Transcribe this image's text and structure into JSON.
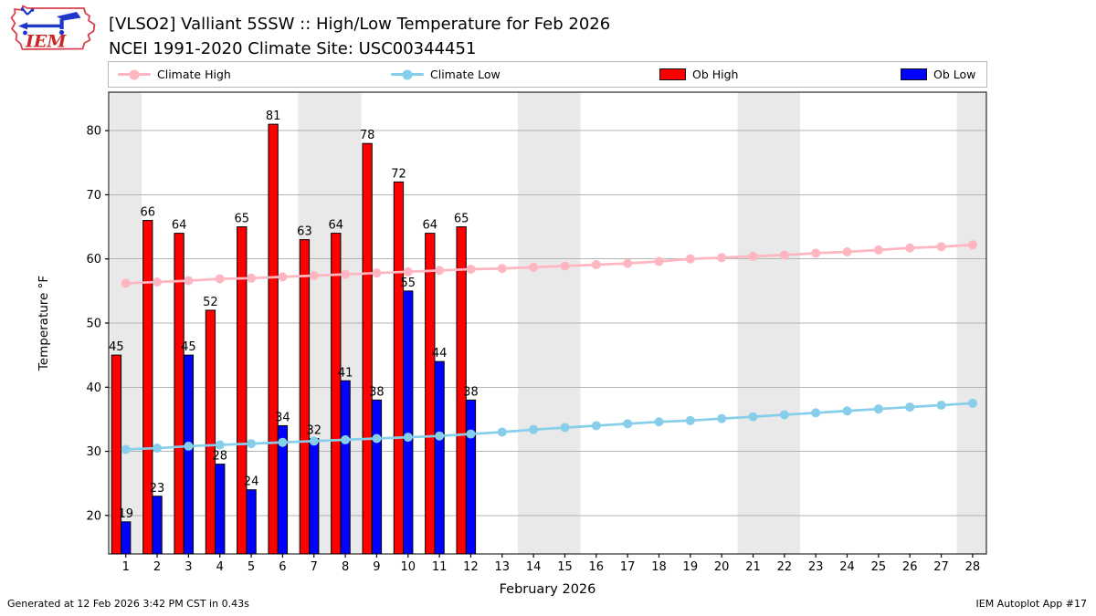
{
  "header": {
    "title_line1": "[VLSO2] Valliant 5SSW :: High/Low Temperature for Feb 2026",
    "title_line2": "NCEI 1991-2020 Climate Site: USC00344451",
    "logo_text": "IEM"
  },
  "legend": {
    "items": [
      {
        "label": "Climate High",
        "type": "line",
        "color": "#FFB6C1"
      },
      {
        "label": "Climate Low",
        "type": "line",
        "color": "#87CEEB"
      },
      {
        "label": "Ob High",
        "type": "swatch",
        "color": "#FF0000"
      },
      {
        "label": "Ob Low",
        "type": "swatch",
        "color": "#0000FF"
      }
    ]
  },
  "footer": {
    "left": "Generated at 12 Feb 2026 3:42 PM CST in 0.43s",
    "right": "IEM Autoplot App #17"
  },
  "chart_data": {
    "type": "bar",
    "xlabel": "February 2026",
    "ylabel": "Temperature °F",
    "xlim": [
      0.455,
      28.44
    ],
    "ylim": [
      14,
      86
    ],
    "xticks": [
      1,
      2,
      3,
      4,
      5,
      6,
      7,
      8,
      9,
      10,
      11,
      12,
      13,
      14,
      15,
      16,
      17,
      18,
      19,
      20,
      21,
      22,
      23,
      24,
      25,
      26,
      27,
      28
    ],
    "yticks": [
      20,
      30,
      40,
      50,
      60,
      70,
      80
    ],
    "grid": "horizontal",
    "weekend_bands": [
      [
        0.5,
        1.5
      ],
      [
        6.5,
        8.5
      ],
      [
        13.5,
        15.5
      ],
      [
        20.5,
        22.5
      ],
      [
        27.5,
        28.44
      ]
    ],
    "colors": {
      "band": "#E9E9E9",
      "grid": "#B4B4B4",
      "spine": "#000000",
      "bar_edge": "#000000",
      "ob_high": "#FF0000",
      "ob_low": "#0000FF",
      "climate_high": "#FFB6C1",
      "climate_low": "#87CEEB",
      "label_text": "#000000"
    },
    "series": [
      {
        "name": "Climate High",
        "type": "line",
        "color": "#FFB6C1",
        "x": [
          1,
          2,
          3,
          4,
          5,
          6,
          7,
          8,
          9,
          10,
          11,
          12,
          13,
          14,
          15,
          16,
          17,
          18,
          19,
          20,
          21,
          22,
          23,
          24,
          25,
          26,
          27,
          28
        ],
        "values": [
          56.2,
          56.4,
          56.6,
          56.9,
          57.0,
          57.2,
          57.4,
          57.6,
          57.8,
          58.0,
          58.2,
          58.4,
          58.5,
          58.7,
          58.9,
          59.1,
          59.3,
          59.6,
          60.0,
          60.2,
          60.4,
          60.6,
          60.9,
          61.1,
          61.4,
          61.7,
          61.9,
          62.2
        ]
      },
      {
        "name": "Climate Low",
        "type": "line",
        "color": "#87CEEB",
        "x": [
          1,
          2,
          3,
          4,
          5,
          6,
          7,
          8,
          9,
          10,
          11,
          12,
          13,
          14,
          15,
          16,
          17,
          18,
          19,
          20,
          21,
          22,
          23,
          24,
          25,
          26,
          27,
          28
        ],
        "values": [
          30.3,
          30.5,
          30.8,
          31.0,
          31.2,
          31.4,
          31.6,
          31.8,
          32.0,
          32.2,
          32.4,
          32.7,
          33.0,
          33.4,
          33.7,
          34.0,
          34.3,
          34.6,
          34.8,
          35.1,
          35.4,
          35.7,
          36.0,
          36.3,
          36.6,
          36.9,
          37.2,
          37.5
        ]
      },
      {
        "name": "Ob High",
        "type": "bar",
        "color": "#FF0000",
        "x": [
          1,
          2,
          3,
          4,
          5,
          6,
          7,
          8,
          9,
          10,
          11,
          12
        ],
        "values": [
          45,
          66,
          64,
          52,
          65,
          81,
          63,
          64,
          78,
          72,
          64,
          65
        ]
      },
      {
        "name": "Ob Low",
        "type": "bar",
        "color": "#0000FF",
        "x": [
          1,
          2,
          3,
          4,
          5,
          6,
          7,
          8,
          9,
          10,
          11,
          12
        ],
        "values": [
          19,
          23,
          45,
          28,
          24,
          34,
          32,
          41,
          38,
          55,
          44,
          38
        ]
      }
    ]
  }
}
